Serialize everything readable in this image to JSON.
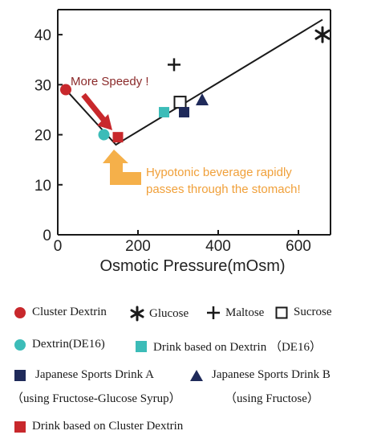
{
  "chart_data": {
    "type": "scatter",
    "xlabel": "Osmotic Pressure(mOsm)",
    "ylabel": "",
    "xlim": [
      0,
      680
    ],
    "ylim": [
      0,
      45
    ],
    "x_ticks": [
      0,
      200,
      400,
      600
    ],
    "y_ticks": [
      0,
      10,
      20,
      30,
      40
    ],
    "x_tick_labels": [
      "0",
      "200",
      "400",
      "600"
    ],
    "y_tick_labels": [
      "0",
      "10",
      "20",
      "30",
      "40"
    ],
    "grid": false,
    "trend_line": [
      [
        20,
        29
      ],
      [
        145,
        18
      ],
      [
        660,
        43
      ]
    ],
    "series": [
      {
        "name": "Cluster Dextrin",
        "marker": "circle",
        "color": "#c8282c",
        "points": [
          [
            20,
            29
          ]
        ]
      },
      {
        "name": "Glucose",
        "marker": "asterisk",
        "color": "#1a1a1a",
        "points": [
          [
            660,
            40
          ]
        ]
      },
      {
        "name": "Maltose",
        "marker": "plus",
        "color": "#1a1a1a",
        "points": [
          [
            290,
            34
          ]
        ]
      },
      {
        "name": "Sucrose",
        "marker": "open-square",
        "color": "#1a1a1a",
        "points": [
          [
            305,
            26.5
          ]
        ]
      },
      {
        "name": "Dextrin(DE16)",
        "marker": "circle",
        "color": "#3cbcb8",
        "points": [
          [
            115,
            20
          ]
        ]
      },
      {
        "name": "Drink based on Dextrin （DE16）",
        "marker": "square",
        "color": "#3cbcb8",
        "points": [
          [
            265,
            24.5
          ]
        ]
      },
      {
        "name": "Japanese Sports Drink A",
        "marker": "square",
        "color": "#1f2a5a",
        "points": [
          [
            315,
            24.5
          ]
        ]
      },
      {
        "name": "Japanese Sports Drink B",
        "marker": "triangle",
        "color": "#1f2a5a",
        "points": [
          [
            360,
            27
          ]
        ]
      },
      {
        "name": "Drink based on Cluster Dextrin",
        "marker": "square",
        "color": "#c8282c",
        "points": [
          [
            150,
            19.5
          ]
        ]
      }
    ],
    "annotations": [
      {
        "text": "More Speedy !",
        "color": "#8b2a2a"
      },
      {
        "text_lines": [
          "Hypotonic beverage rapidly",
          "passes through the stomach!"
        ],
        "color": "#f0a03a"
      }
    ]
  },
  "legend": {
    "cluster_dextrin": "Cluster Dextrin",
    "glucose": "Glucose",
    "maltose": "Maltose",
    "sucrose": "Sucrose",
    "dextrin_de16": "Dextrin(DE16)",
    "drink_dextrin": "Drink based on Dextrin （DE16）",
    "sports_a": "Japanese Sports Drink A",
    "sports_a_note": "（using Fructose-Glucose Syrup）",
    "sports_b": "Japanese Sports Drink B",
    "sports_b_note": "（using Fructose）",
    "drink_cluster": "Drink based on Cluster Dextrin"
  }
}
